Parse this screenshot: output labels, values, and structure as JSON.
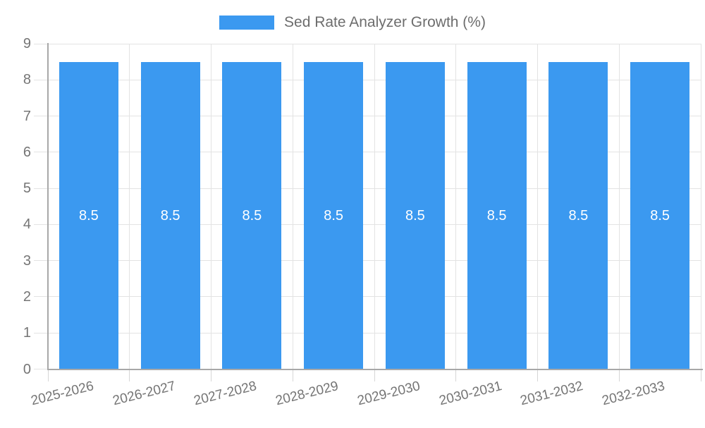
{
  "legend": {
    "swatch_color": "#3b99f0"
  },
  "chart_data": {
    "type": "bar",
    "title": "",
    "xlabel": "",
    "ylabel": "",
    "categories": [
      "2025-2026",
      "2026-2027",
      "2027-2028",
      "2028-2029",
      "2029-2030",
      "2030-2031",
      "2031-2032",
      "2032-2033"
    ],
    "series": [
      {
        "name": "Sed Rate Analyzer Growth (%)",
        "values": [
          8.5,
          8.5,
          8.5,
          8.5,
          8.5,
          8.5,
          8.5,
          8.5
        ]
      }
    ],
    "ylim": [
      0,
      9
    ],
    "yticks": [
      0,
      1,
      2,
      3,
      4,
      5,
      6,
      7,
      8,
      9
    ],
    "grid": true,
    "legend_position": "top",
    "bar_value_labels_shown": true,
    "colors": {
      "bar": "#3b99f0",
      "grid": "#e3e3e3",
      "axis": "#a8a8a8",
      "tick": "#d6d6d6",
      "label_text": "#757575",
      "value_text": "#ffffff",
      "legend_text": "#6d6d6d",
      "background": "#ffffff"
    }
  }
}
